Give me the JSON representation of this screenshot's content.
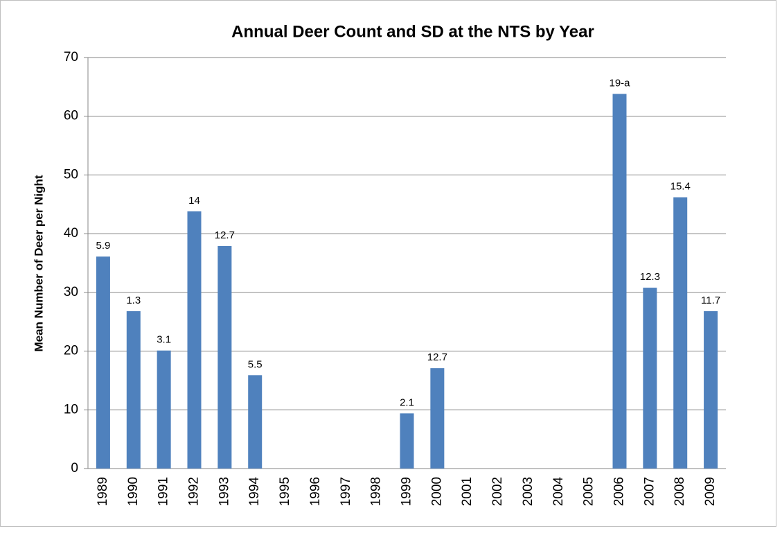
{
  "chart_data": {
    "type": "bar",
    "title": "Annual Deer Count and SD at the NTS by Year",
    "y_label": "Mean Number of Deer per Night",
    "categories": [
      "1989",
      "1990",
      "1991",
      "1992",
      "1993",
      "1994",
      "1995",
      "1996",
      "1997",
      "1998",
      "1999",
      "2000",
      "2001",
      "2002",
      "2003",
      "2004",
      "2005",
      "2006",
      "2007",
      "2008",
      "2009"
    ],
    "values": [
      36.1,
      26.8,
      20.1,
      43.8,
      37.9,
      15.9,
      null,
      null,
      null,
      null,
      9.4,
      17.1,
      null,
      null,
      null,
      null,
      null,
      63.8,
      30.8,
      46.2,
      26.8
    ],
    "sd_labels": [
      "5.9",
      "1.3",
      "3.1",
      "14",
      "12.7",
      "5.5",
      null,
      null,
      null,
      null,
      "2.1",
      "12.7",
      null,
      null,
      null,
      null,
      null,
      "19-a",
      "12.3",
      "15.4",
      "11.7"
    ],
    "color": "#4f81bd",
    "ylim": [
      0,
      70
    ],
    "yticks": [
      0,
      10,
      20,
      30,
      40,
      50,
      60,
      70
    ],
    "grid": true
  }
}
